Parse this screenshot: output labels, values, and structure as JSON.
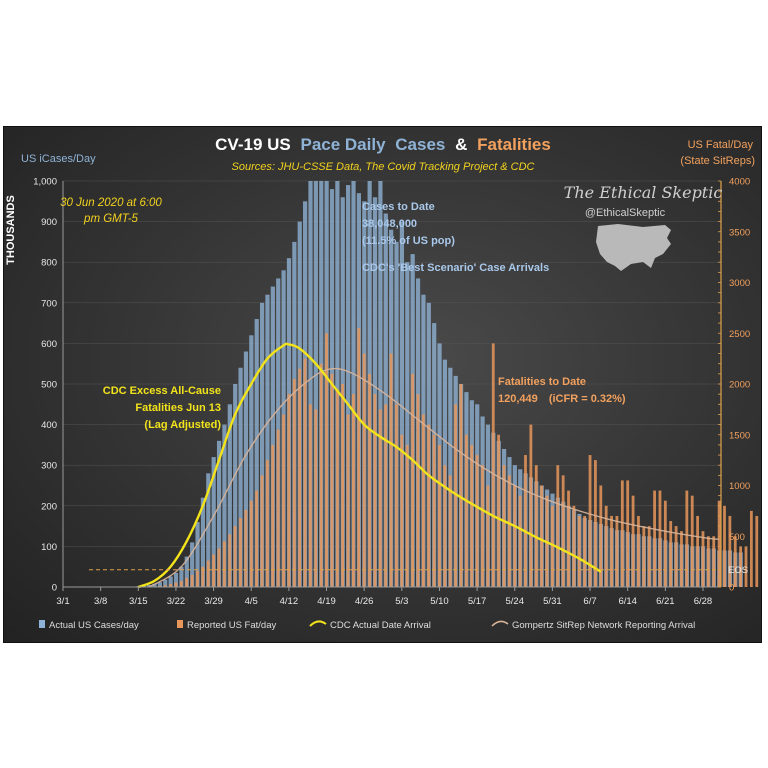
{
  "title": {
    "part1": "CV-19 US",
    "part2": "Pace Daily",
    "part3": "Cases",
    "amp": "&",
    "part4": "Fatalities"
  },
  "subtitle": "Sources: JHU-CSSE Data, The Covid Tracking Project & CDC",
  "left_axis": {
    "line1": "US iCases/Day",
    "unit": "THOUSANDS"
  },
  "right_axis": {
    "line1": "US Fatal/Day",
    "line2": "(State SitReps)"
  },
  "date_note": {
    "line1": "30 Jun 2020 at 6:00",
    "line2": "pm GMT-5"
  },
  "cases_note": {
    "line1": "Cases to Date",
    "line2": "38,048,000",
    "line3": "(11.5% of US pop)",
    "line4": "CDC's 'Best Scenario' Case Arrivals"
  },
  "cdc_note": {
    "line1": "CDC Excess All-Cause",
    "line2": "Fatalities Jun 13",
    "line3": "(Lag Adjusted)"
  },
  "fatal_note": {
    "line1": "Fatalities to Date",
    "line2": "120,449",
    "line3": "(iCFR = 0.32%)"
  },
  "eos_label": "EOS",
  "brand": {
    "name": "The Ethical Skeptic",
    "handle": "@EthicalSkeptic"
  },
  "legend": [
    {
      "label": "Actual US Cases/day",
      "color": "#8fb3d6"
    },
    {
      "label": "Reported US Fat/day",
      "color": "#e8975a"
    },
    {
      "label": "CDC Actual Date Arrival",
      "color": "#f2e31a"
    },
    {
      "label": "Gompertz SitRep Network Reporting Arrival",
      "color": "#d9b59a"
    }
  ],
  "colors": {
    "cases": "#8fb3d6",
    "fatal": "#e8975a",
    "cdc": "#f2e31a",
    "gompertz": "#d9b59a",
    "accent": "#f2a15e",
    "eos_line": "#e0a24a"
  },
  "chart_data": {
    "type": "bar",
    "x_tick_labels": [
      "3/1",
      "3/8",
      "3/15",
      "3/22",
      "3/29",
      "4/5",
      "4/12",
      "4/19",
      "4/26",
      "5/3",
      "5/10",
      "5/17",
      "5/24",
      "5/31",
      "6/7",
      "6/14",
      "6/21",
      "6/28"
    ],
    "left_ylim": [
      0,
      1000
    ],
    "left_ticks": [
      "0",
      "100",
      "200",
      "300",
      "400",
      "500",
      "600",
      "700",
      "800",
      "900",
      "1,000"
    ],
    "right_ylim": [
      0,
      4000
    ],
    "right_ticks": [
      "0",
      "500",
      "1000",
      "1500",
      "2000",
      "2500",
      "3000",
      "3500",
      "4000"
    ],
    "eos_value_right": 170,
    "day0": "3/1",
    "series": [
      {
        "name": "Actual US Cases/day",
        "axis": "left",
        "values": [
          0,
          0,
          0,
          0,
          0,
          0,
          0,
          0,
          0,
          0,
          0,
          0,
          0,
          1,
          2,
          3,
          5,
          8,
          12,
          18,
          26,
          35,
          50,
          75,
          110,
          160,
          220,
          280,
          320,
          360,
          400,
          450,
          500,
          540,
          580,
          620,
          660,
          700,
          720,
          740,
          760,
          780,
          810,
          850,
          900,
          950,
          1000,
          1000,
          1000,
          1000,
          980,
          1000,
          960,
          990,
          1000,
          970,
          950,
          1000,
          960,
          1000,
          920,
          880,
          850,
          900,
          800,
          820,
          760,
          720,
          700,
          650,
          600,
          560,
          540,
          520,
          500,
          480,
          460,
          450,
          420,
          400,
          380,
          360,
          340,
          320,
          300,
          290,
          280,
          270,
          260,
          250,
          240,
          230,
          220,
          210,
          200,
          190,
          180,
          170,
          165,
          160,
          155,
          150,
          145,
          140,
          140,
          135,
          130,
          130,
          125,
          125,
          120,
          120,
          115,
          110,
          110,
          105,
          105,
          100,
          100,
          100,
          95,
          95,
          90,
          90,
          90,
          85,
          85
        ]
      },
      {
        "name": "Reported US Fat/day",
        "axis": "right",
        "values": [
          0,
          0,
          0,
          0,
          0,
          0,
          0,
          0,
          0,
          0,
          0,
          0,
          0,
          0,
          0,
          0,
          0,
          5,
          10,
          20,
          30,
          45,
          60,
          90,
          120,
          160,
          200,
          260,
          320,
          380,
          450,
          520,
          600,
          680,
          760,
          850,
          950,
          1100,
          1250,
          1400,
          1550,
          1700,
          1900,
          2050,
          2150,
          2250,
          1800,
          1750,
          2200,
          2500,
          2100,
          1950,
          2000,
          1700,
          1900,
          2550,
          2300,
          2100,
          1900,
          1750,
          1800,
          2300,
          1800,
          1500,
          1400,
          2100,
          1900,
          1700,
          1600,
          1500,
          1400,
          1200,
          1100,
          1800,
          2000,
          1500,
          1400,
          1300,
          1200,
          1000,
          2400,
          1500,
          1200,
          1100,
          1000,
          900,
          1300,
          1600,
          1200,
          1000,
          900,
          800,
          1200,
          1100,
          950,
          800,
          700,
          700,
          1300,
          1250,
          1000,
          800,
          700,
          700,
          1050,
          1050,
          900,
          700,
          600,
          600,
          950,
          950,
          850,
          650,
          600,
          550,
          950,
          900,
          700,
          550,
          500,
          500,
          850,
          800,
          700,
          500,
          400,
          400,
          750,
          700,
          600,
          450,
          350,
          350,
          650,
          700
        ]
      },
      {
        "name": "CDC Actual Date Arrival",
        "axis": "right",
        "type": "line",
        "points": [
          [
            14,
            0
          ],
          [
            17,
            60
          ],
          [
            20,
            200
          ],
          [
            23,
            450
          ],
          [
            26,
            800
          ],
          [
            29,
            1250
          ],
          [
            32,
            1700
          ],
          [
            35,
            2000
          ],
          [
            38,
            2250
          ],
          [
            41,
            2380
          ],
          [
            42,
            2390
          ],
          [
            44,
            2350
          ],
          [
            47,
            2200
          ],
          [
            50,
            2000
          ],
          [
            53,
            1800
          ],
          [
            56,
            1600
          ],
          [
            59,
            1480
          ],
          [
            62,
            1380
          ],
          [
            65,
            1250
          ],
          [
            68,
            1100
          ],
          [
            72,
            950
          ],
          [
            76,
            820
          ],
          [
            80,
            700
          ],
          [
            84,
            600
          ],
          [
            88,
            490
          ],
          [
            92,
            390
          ],
          [
            96,
            280
          ],
          [
            100,
            150
          ]
        ]
      },
      {
        "name": "Gompertz SitRep Network Reporting Arrival",
        "axis": "right",
        "type": "line",
        "points": [
          [
            16,
            0
          ],
          [
            22,
            200
          ],
          [
            28,
            700
          ],
          [
            34,
            1300
          ],
          [
            40,
            1750
          ],
          [
            46,
            2050
          ],
          [
            50,
            2150
          ],
          [
            54,
            2100
          ],
          [
            60,
            1900
          ],
          [
            66,
            1650
          ],
          [
            72,
            1400
          ],
          [
            78,
            1180
          ],
          [
            84,
            1000
          ],
          [
            90,
            860
          ],
          [
            96,
            750
          ],
          [
            102,
            660
          ],
          [
            108,
            590
          ],
          [
            114,
            530
          ],
          [
            120,
            480
          ],
          [
            122,
            470
          ]
        ]
      }
    ]
  }
}
